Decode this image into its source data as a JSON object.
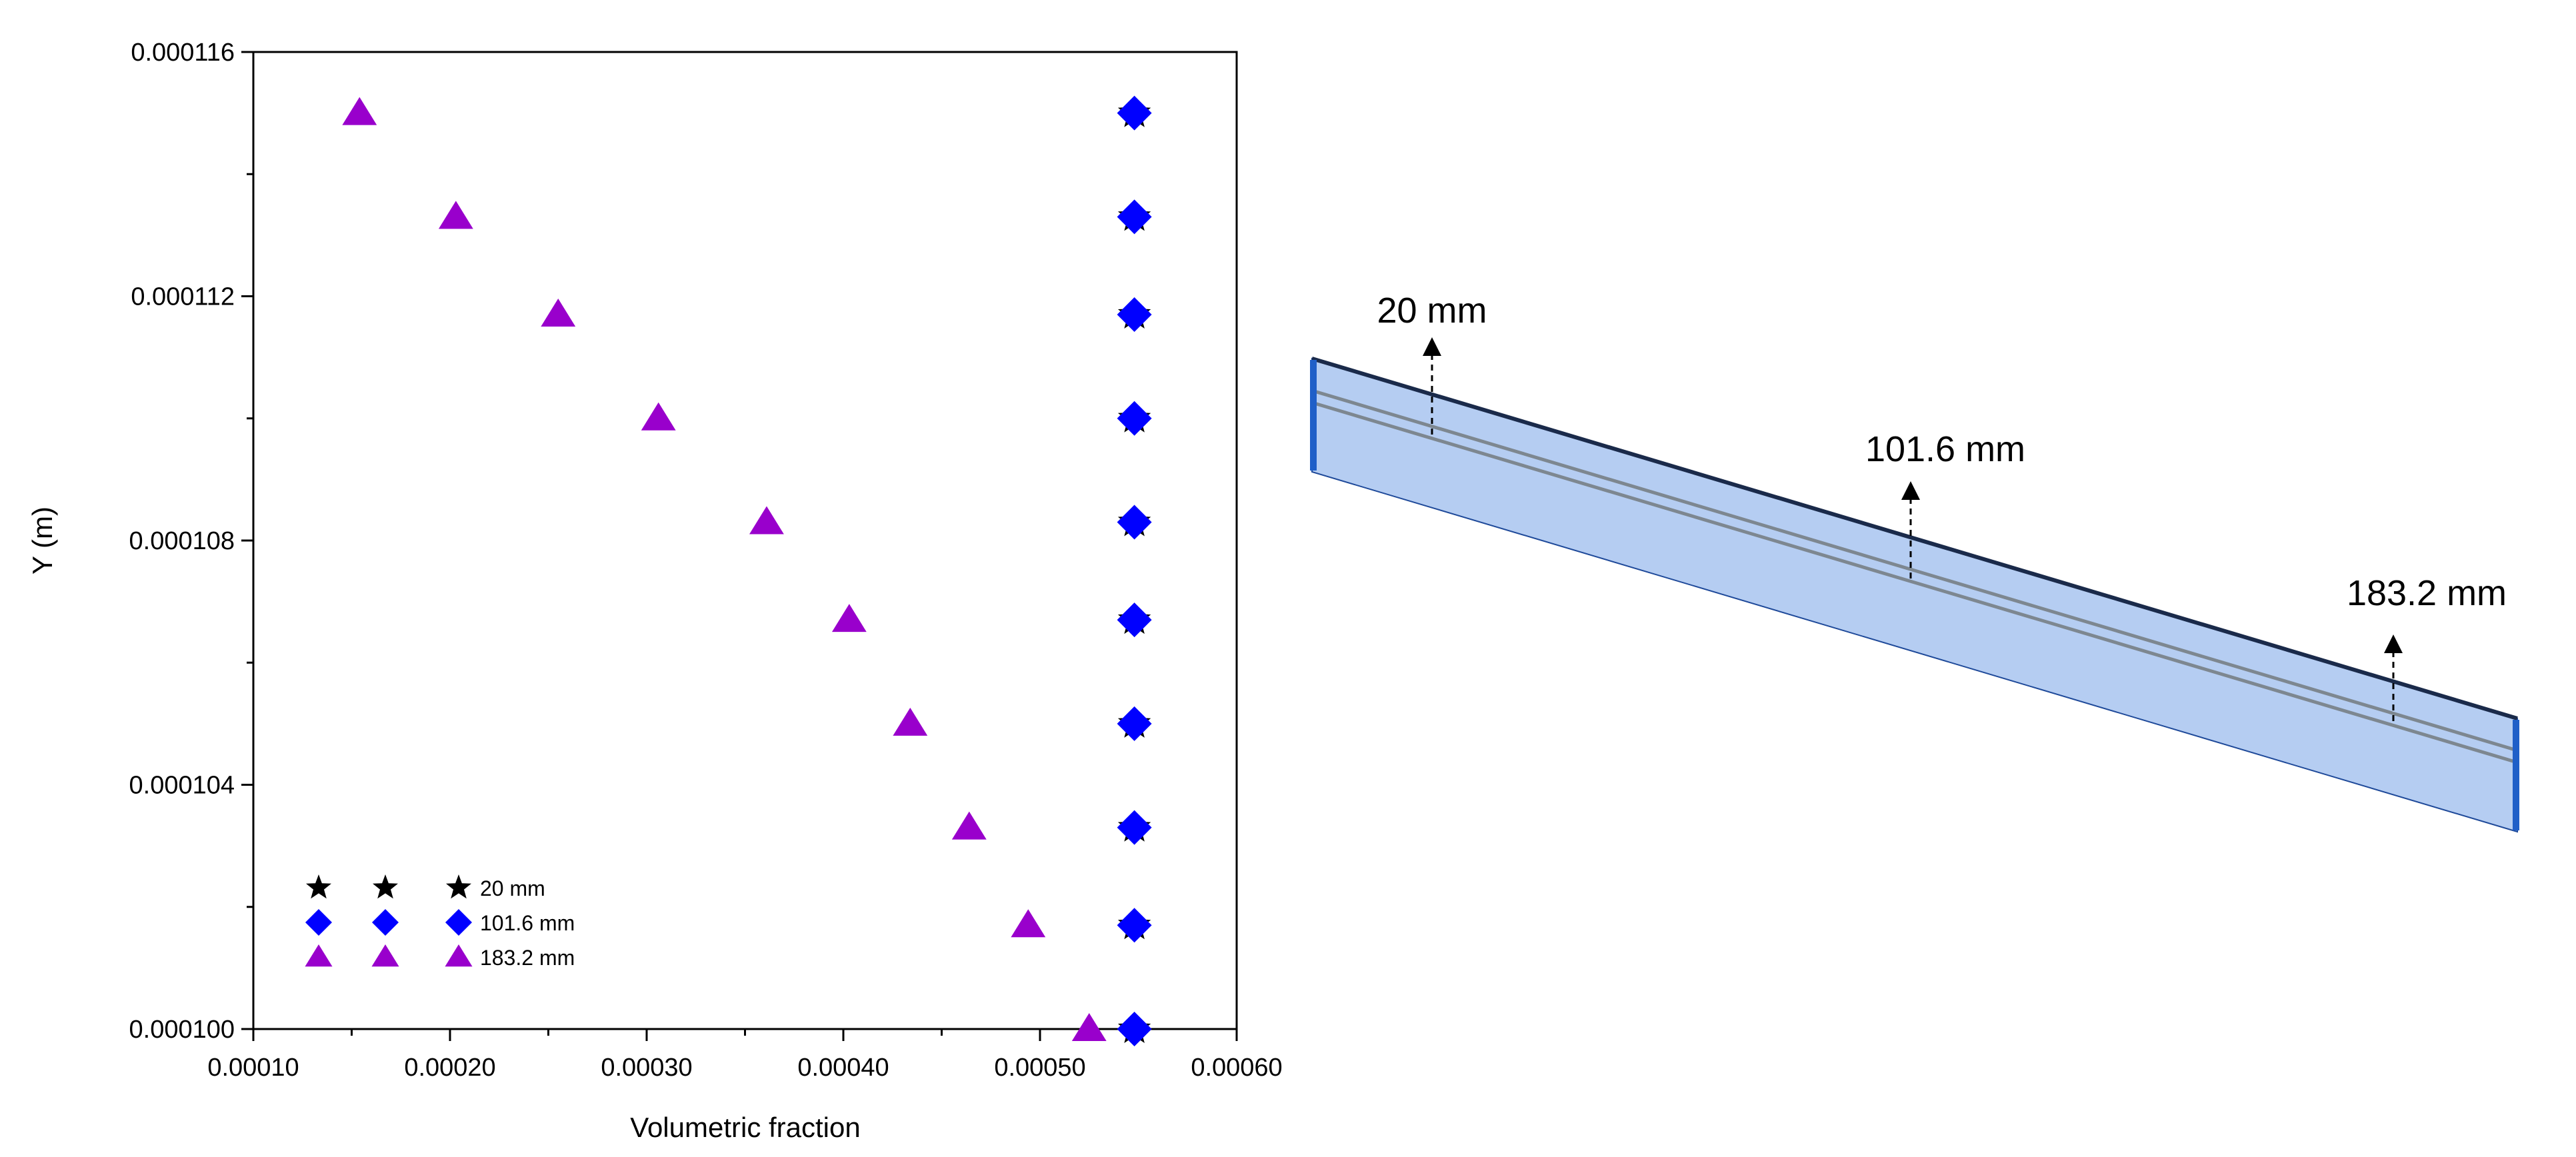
{
  "chart_data": {
    "type": "scatter",
    "title": "",
    "xlabel": "Volumetric fraction",
    "ylabel": "Y (m)",
    "xlim": [
      0.0001,
      0.0006
    ],
    "ylim": [
      0.0001,
      0.000116
    ],
    "x_ticks": [
      "0.00010",
      "0.00020",
      "0.00030",
      "0.00040",
      "0.00050",
      "0.00060"
    ],
    "x_tick_values": [
      0.0001,
      0.0002,
      0.0003,
      0.0004,
      0.0005,
      0.0006
    ],
    "y_ticks": [
      "0.000100",
      "0.000104",
      "0.000108",
      "0.000112",
      "0.000116"
    ],
    "y_tick_values": [
      0.0001,
      0.000104,
      0.000108,
      0.000112,
      0.000116
    ],
    "grid": false,
    "legend_position": "bottom-left",
    "series": [
      {
        "name": "20 mm",
        "marker": "star",
        "color": "#000000",
        "points": [
          [
            0.000548,
            0.0001
          ],
          [
            0.000548,
            0.0001017
          ],
          [
            0.000548,
            0.0001033
          ],
          [
            0.000548,
            0.000105
          ],
          [
            0.000548,
            0.0001067
          ],
          [
            0.000548,
            0.0001083
          ],
          [
            0.000548,
            0.00011
          ],
          [
            0.000548,
            0.0001117
          ],
          [
            0.000548,
            0.0001133
          ],
          [
            0.000548,
            0.000115
          ]
        ]
      },
      {
        "name": "101.6 mm",
        "marker": "diamond",
        "color": "#0000ff",
        "points": [
          [
            0.000548,
            0.0001
          ],
          [
            0.000548,
            0.0001017
          ],
          [
            0.000548,
            0.0001033
          ],
          [
            0.000548,
            0.000105
          ],
          [
            0.000548,
            0.0001067
          ],
          [
            0.000548,
            0.0001083
          ],
          [
            0.000548,
            0.00011
          ],
          [
            0.000548,
            0.0001117
          ],
          [
            0.000548,
            0.0001133
          ],
          [
            0.000548,
            0.000115
          ]
        ]
      },
      {
        "name": "183.2 mm",
        "marker": "triangle",
        "color": "#9900cc",
        "points": [
          [
            0.000525,
            0.0001
          ],
          [
            0.000494,
            0.0001017
          ],
          [
            0.000464,
            0.0001033
          ],
          [
            0.000434,
            0.000105
          ],
          [
            0.000403,
            0.0001067
          ],
          [
            0.000361,
            0.0001083
          ],
          [
            0.000306,
            0.00011
          ],
          [
            0.000255,
            0.0001117
          ],
          [
            0.000203,
            0.0001133
          ],
          [
            0.000154,
            0.000115
          ]
        ]
      }
    ]
  },
  "beam_diagram": {
    "labels": [
      "20 mm",
      "101.6 mm",
      "183.2 mm"
    ],
    "fill_color": "#b5cdf2",
    "edge_color": "#1f5fc8"
  }
}
